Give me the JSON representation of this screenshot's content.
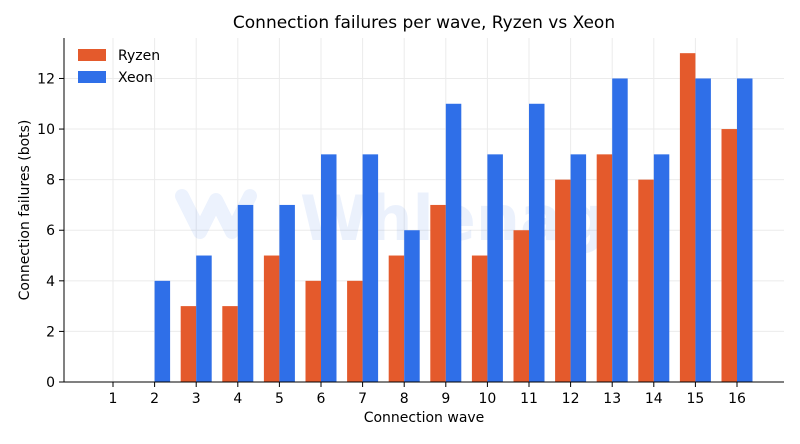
{
  "chart_data": {
    "type": "bar",
    "title": "Connection failures per wave, Ryzen vs Xeon",
    "xlabel": "Connection wave",
    "ylabel": "Connection failures (bots)",
    "categories": [
      "1",
      "2",
      "3",
      "4",
      "5",
      "6",
      "7",
      "8",
      "9",
      "10",
      "11",
      "12",
      "13",
      "14",
      "15",
      "16"
    ],
    "series": [
      {
        "name": "Ryzen",
        "color": "#e45a2c",
        "values": [
          0,
          0,
          3,
          3,
          5,
          4,
          4,
          5,
          7,
          5,
          6,
          8,
          9,
          8,
          13,
          10
        ]
      },
      {
        "name": "Xeon",
        "color": "#2f6fe8",
        "values": [
          0,
          4,
          5,
          7,
          7,
          9,
          9,
          6,
          11,
          9,
          11,
          9,
          12,
          9,
          12,
          12
        ]
      }
    ],
    "ylim": [
      0,
      13.6
    ],
    "yticks": [
      0,
      2,
      4,
      6,
      8,
      10,
      12
    ],
    "grid": true,
    "legend": "top-left"
  },
  "watermark": {
    "text": "Whlenag"
  }
}
